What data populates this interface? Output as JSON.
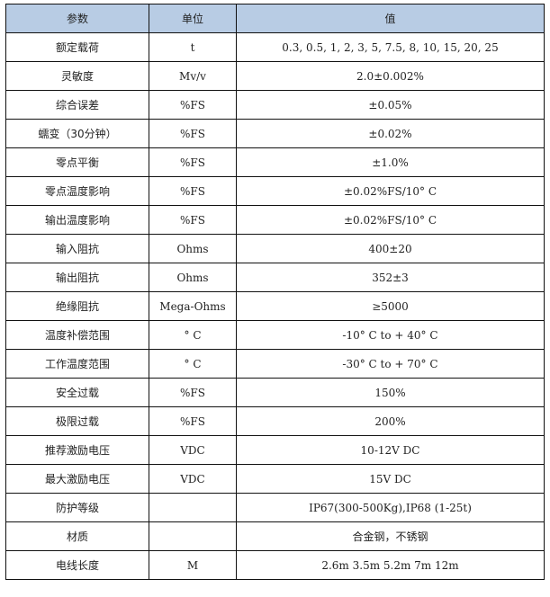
{
  "header_color": "#b8cce4",
  "headers": [
    "参数",
    "单位",
    "值"
  ],
  "rows": [
    {
      "param": "额定载荷",
      "unit": "t",
      "value": "0.3, 0.5, 1, 2, 3, 5, 7.5, 8, 10, 15, 20, 25"
    },
    {
      "param": "灵敏度",
      "unit": "Mv/v",
      "value": "2.0±0.002%"
    },
    {
      "param": "综合误差",
      "unit": "%FS",
      "value": "±0.05%"
    },
    {
      "param": "蠕变（30分钟）",
      "unit": "%FS",
      "value": "±0.02%"
    },
    {
      "param": "零点平衡",
      "unit": "%FS",
      "value": "±1.0%"
    },
    {
      "param": "零点温度影响",
      "unit": "%FS",
      "value": "±0.02%FS/10° C"
    },
    {
      "param": "输出温度影响",
      "unit": "%FS",
      "value": "±0.02%FS/10° C"
    },
    {
      "param": "输入阻抗",
      "unit": "Ohms",
      "value": "400±20"
    },
    {
      "param": "输出阻抗",
      "unit": "Ohms",
      "value": "352±3"
    },
    {
      "param": "绝缘阻抗",
      "unit": "Mega-Ohms",
      "value": "≥5000"
    },
    {
      "param": "温度补偿范围",
      "unit": "° C",
      "value": "-10° C to + 40° C"
    },
    {
      "param": "工作温度范围",
      "unit": "° C",
      "value": "-30° C to + 70° C"
    },
    {
      "param": "安全过载",
      "unit": "%FS",
      "value": "150%"
    },
    {
      "param": "极限过载",
      "unit": "%FS",
      "value": "200%"
    },
    {
      "param": "推荐激励电压",
      "unit": "VDC",
      "value": "10-12V DC"
    },
    {
      "param": "最大激励电压",
      "unit": "VDC",
      "value": "15V DC"
    },
    {
      "param": "防护等级",
      "unit": "",
      "value": "IP67(300-500Kg),IP68 (1-25t)"
    },
    {
      "param": "材质",
      "unit": "",
      "value": "合金钢，不锈钢"
    },
    {
      "param": "电线长度",
      "unit": "M",
      "value": "2.6m 3.5m 5.2m 7m 12m"
    }
  ]
}
